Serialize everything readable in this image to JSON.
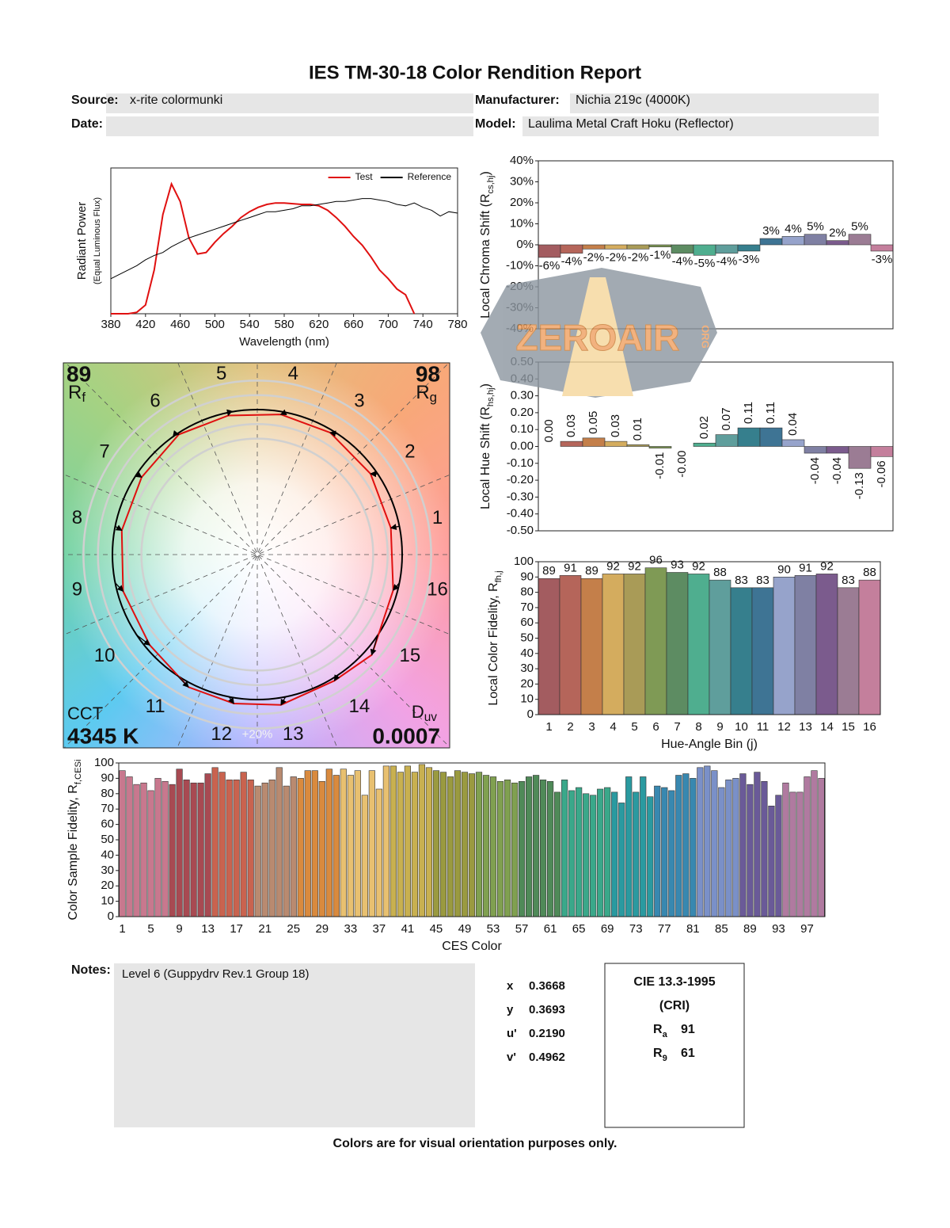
{
  "header": {
    "title": "IES TM-30-18 Color Rendition Report",
    "source_label": "Source:",
    "source": "x-rite colormunki",
    "manufacturer_label": "Manufacturer:",
    "manufacturer": "Nichia 219c (4000K)",
    "date_label": "Date:",
    "model_label": "Model:",
    "model": "Laulima Metal Craft Hoku (Reflector)"
  },
  "chart_data": [
    {
      "type": "line",
      "xlabel": "Wavelength (nm)",
      "ylabel": "Radiant Power",
      "ylabel_note": "(Equal Luminous Flux)",
      "legend": "upper right",
      "x": [
        380,
        390,
        400,
        410,
        420,
        430,
        440,
        450,
        460,
        470,
        480,
        490,
        500,
        510,
        520,
        530,
        540,
        550,
        560,
        570,
        580,
        590,
        600,
        610,
        620,
        630,
        640,
        650,
        660,
        670,
        680,
        690,
        700,
        710,
        720,
        730,
        740,
        750,
        760,
        770,
        780
      ],
      "series": [
        {
          "name": "Test",
          "color": "#e01010",
          "values": [
            0,
            0,
            0,
            0.01,
            0.06,
            0.3,
            0.68,
            0.89,
            0.77,
            0.52,
            0.41,
            0.42,
            0.49,
            0.55,
            0.6,
            0.66,
            0.7,
            0.73,
            0.75,
            0.76,
            0.76,
            0.755,
            0.75,
            0.75,
            0.74,
            0.71,
            0.66,
            0.6,
            0.53,
            0.47,
            0.39,
            0.3,
            0.24,
            0.17,
            0.13,
            0,
            null,
            null,
            null,
            null,
            null
          ]
        },
        {
          "name": "Reference",
          "color": "#000000",
          "values": [
            0.24,
            0.27,
            0.3,
            0.33,
            0.37,
            0.4,
            0.42,
            0.46,
            0.49,
            0.52,
            0.54,
            0.56,
            0.58,
            0.6,
            0.62,
            0.64,
            0.66,
            0.68,
            0.7,
            0.7,
            0.71,
            0.72,
            0.74,
            0.74,
            0.75,
            0.76,
            0.77,
            0.77,
            0.78,
            0.79,
            0.79,
            0.78,
            0.77,
            0.75,
            0.74,
            0.76,
            0.73,
            0.71,
            0.67,
            0.7,
            0.69
          ]
        }
      ],
      "xlim": [
        380,
        780
      ],
      "ylim": [
        0,
        1
      ],
      "xticks": [
        380,
        420,
        460,
        500,
        540,
        580,
        620,
        660,
        700,
        740,
        780
      ]
    },
    {
      "type": "vector",
      "rf": 89,
      "rf_symbol": "R",
      "rf_subscript": "f",
      "rg": 98,
      "rg_symbol": "R",
      "rg_subscript": "g",
      "cct_label": "CCT",
      "cct": "4345 K",
      "duv_symbol": "D",
      "duv_subscript": "uv",
      "duv": 0.0007,
      "ring_label": "+20%",
      "bins": [
        "1",
        "2",
        "3",
        "4",
        "5",
        "6",
        "7",
        "8",
        "9",
        "10",
        "11",
        "12",
        "13",
        "14",
        "15",
        "16"
      ],
      "reference_color": "#000000",
      "test_color": "#e01010"
    },
    {
      "type": "bar",
      "ylabel": "Local Chroma Shift (R",
      "ylabel_subscript": "cs,hj",
      "ylabel_end": ")",
      "values": [
        -6,
        -4,
        -2,
        -2,
        -2,
        -1,
        -4,
        -5,
        -4,
        -3,
        3,
        4,
        5,
        2,
        5,
        -3
      ],
      "value_labels": [
        "-6%",
        "-4%",
        "-2%",
        "-2%",
        "-2%",
        "-1%",
        "-4%",
        "-5%",
        "-4%",
        "-3%",
        "3%",
        "4%",
        "5%",
        "2%",
        "5%",
        "-3%"
      ],
      "colors": [
        "#a35c60",
        "#b5655a",
        "#c47f4a",
        "#d4ac5e",
        "#a99b57",
        "#7f9a55",
        "#5d8c62",
        "#4fae8f",
        "#5f9e9c",
        "#367f8d",
        "#3e7494",
        "#96a3cb",
        "#7f80a3",
        "#7b5b8d",
        "#9b7c94",
        "#c47f9c"
      ],
      "ylim": [
        -40,
        40
      ],
      "yticks": [
        {
          "value": -40,
          "label": "-40%"
        },
        {
          "value": -30,
          "label": "-30%"
        },
        {
          "value": -20,
          "label": "-20%"
        },
        {
          "value": -10,
          "label": "-10%"
        },
        {
          "value": 0,
          "label": "0%"
        },
        {
          "value": 10,
          "label": "10%"
        },
        {
          "value": 20,
          "label": "20%"
        },
        {
          "value": 30,
          "label": "30%"
        },
        {
          "value": 40,
          "label": "40%"
        }
      ]
    },
    {
      "type": "bar",
      "ylabel": "Local Hue Shift (R",
      "ylabel_subscript": "hs,hj",
      "ylabel_end": ")",
      "values": [
        0,
        0.03,
        0.05,
        0.03,
        0.01,
        -0.01,
        0,
        0.02,
        0.07,
        0.11,
        0.11,
        0.04,
        -0.04,
        -0.04,
        -0.13,
        -0.06
      ],
      "value_labels": [
        "0.00",
        "0.03",
        "0.05",
        "0.03",
        "0.01",
        "-0.01",
        "-0.00",
        "0.02",
        "0.07",
        "0.11",
        "0.11",
        "0.04",
        "-0.04",
        "-0.04",
        "-0.13",
        "-0.06"
      ],
      "colors": [
        "#a35c60",
        "#b5655a",
        "#c47f4a",
        "#d4ac5e",
        "#a99b57",
        "#7f9a55",
        "#5d8c62",
        "#4fae8f",
        "#5f9e9c",
        "#367f8d",
        "#3e7494",
        "#96a3cb",
        "#7f80a3",
        "#7b5b8d",
        "#9b7c94",
        "#c47f9c"
      ],
      "ylim": [
        -0.5,
        0.5
      ],
      "yticks": [
        {
          "value": -0.5,
          "label": "-0.50"
        },
        {
          "value": -0.4,
          "label": "-0.40"
        },
        {
          "value": -0.3,
          "label": "-0.30"
        },
        {
          "value": -0.2,
          "label": "-0.20"
        },
        {
          "value": -0.1,
          "label": "-0.10"
        },
        {
          "value": 0,
          "label": "0.00"
        },
        {
          "value": 0.1,
          "label": "0.10"
        },
        {
          "value": 0.2,
          "label": "0.20"
        },
        {
          "value": 0.3,
          "label": "0.30"
        },
        {
          "value": 0.4,
          "label": "0.40"
        },
        {
          "value": 0.5,
          "label": "0.50"
        }
      ]
    },
    {
      "type": "bar",
      "xlabel": "Hue-Angle Bin (j)",
      "ylabel": "Local Color Fidelity, R",
      "ylabel_subscript": "fh,j",
      "categories": [
        "1",
        "2",
        "3",
        "4",
        "5",
        "6",
        "7",
        "8",
        "9",
        "10",
        "11",
        "12",
        "13",
        "14",
        "15",
        "16"
      ],
      "values": [
        89,
        91,
        89,
        92,
        92,
        96,
        93,
        92,
        88,
        83,
        83,
        90,
        91,
        92,
        83,
        88
      ],
      "colors": [
        "#a35c60",
        "#b5655a",
        "#c47f4a",
        "#d4ac5e",
        "#a99b57",
        "#7f9a55",
        "#5d8c62",
        "#4fae8f",
        "#5f9e9c",
        "#367f8d",
        "#3e7494",
        "#96a3cb",
        "#7f80a3",
        "#7b5b8d",
        "#9b7c94",
        "#c47f9c"
      ],
      "ylim": [
        0,
        100
      ],
      "yticks": [
        0,
        10,
        20,
        30,
        40,
        50,
        60,
        70,
        80,
        90,
        100
      ]
    },
    {
      "type": "bar",
      "xlabel": "CES Color",
      "ylabel": "Color Sample Fidelity, R",
      "ylabel_subscript": "f,CESi",
      "categories": [
        "1",
        null,
        null,
        null,
        "5",
        null,
        null,
        null,
        "9",
        null,
        null,
        null,
        "13",
        null,
        null,
        null,
        "17",
        null,
        null,
        null,
        "21",
        null,
        null,
        null,
        "25",
        null,
        null,
        null,
        "29",
        null,
        null,
        null,
        "33",
        null,
        null,
        null,
        "37",
        null,
        null,
        null,
        "41",
        null,
        null,
        null,
        "45",
        null,
        null,
        null,
        "49",
        null,
        null,
        null,
        "53",
        null,
        null,
        null,
        "57",
        null,
        null,
        null,
        "61",
        null,
        null,
        null,
        "65",
        null,
        null,
        null,
        "69",
        null,
        null,
        null,
        "73",
        null,
        null,
        null,
        "77",
        null,
        null,
        null,
        "81",
        null,
        null,
        null,
        "85",
        null,
        null,
        null,
        "89",
        null,
        null,
        null,
        "93",
        null,
        null,
        null,
        "97",
        null,
        null
      ],
      "values": [
        95,
        91,
        86,
        87,
        82,
        90,
        88,
        86,
        96,
        89,
        87,
        87,
        93,
        97,
        94,
        89,
        89,
        94,
        89,
        85,
        87,
        89,
        97,
        85,
        91,
        90,
        95,
        95,
        88,
        96,
        92,
        96,
        92,
        95,
        79,
        95,
        83,
        98,
        98,
        94,
        98,
        94,
        99,
        97,
        95,
        94,
        91,
        95,
        94,
        93,
        94,
        92,
        91,
        88,
        89,
        87,
        88,
        91,
        92,
        89,
        88,
        81,
        89,
        82,
        84,
        80,
        79,
        83,
        84,
        81,
        74,
        91,
        81,
        91,
        78,
        85,
        84,
        82,
        92,
        93,
        90,
        97,
        98,
        95,
        84,
        89,
        90,
        93,
        86,
        94,
        88,
        72,
        79,
        87,
        81,
        81,
        91,
        95,
        90
      ],
      "colors": [
        "#c8788e",
        "#a84a52",
        "#c9634f",
        "#b98a70",
        "#d98a3e",
        "#e8c070",
        "#c8b050",
        "#9a9a40",
        "#80a050",
        "#4f8a58",
        "#3aa88a",
        "#2a9aa0",
        "#3888b0",
        "#7a90c8",
        "#6a5a98",
        "#b07aa0"
      ],
      "ylim": [
        0,
        100
      ],
      "yticks": [
        0,
        10,
        20,
        30,
        40,
        50,
        60,
        70,
        80,
        90,
        100
      ]
    }
  ],
  "notes": {
    "label": "Notes:",
    "text": "Level 6 (Guppydrv Rev.1 Group 18)"
  },
  "colorimetry": [
    {
      "label": "x",
      "value": "0.3668"
    },
    {
      "label": "y",
      "value": "0.3693"
    },
    {
      "label": "u'",
      "value": "0.2190"
    },
    {
      "label": "v'",
      "value": "0.4962"
    }
  ],
  "cri": {
    "title": "CIE 13.3-1995",
    "subtitle": "(CRI)",
    "ra_symbol": "R",
    "ra_subscript": "a",
    "ra": 91,
    "r9_symbol": "R",
    "r9_subscript": "9",
    "r9": 61
  },
  "watermark": {
    "text": "ZEROAIR",
    "suffix": "ORG"
  },
  "footer": "Colors are for visual orientation purposes only."
}
